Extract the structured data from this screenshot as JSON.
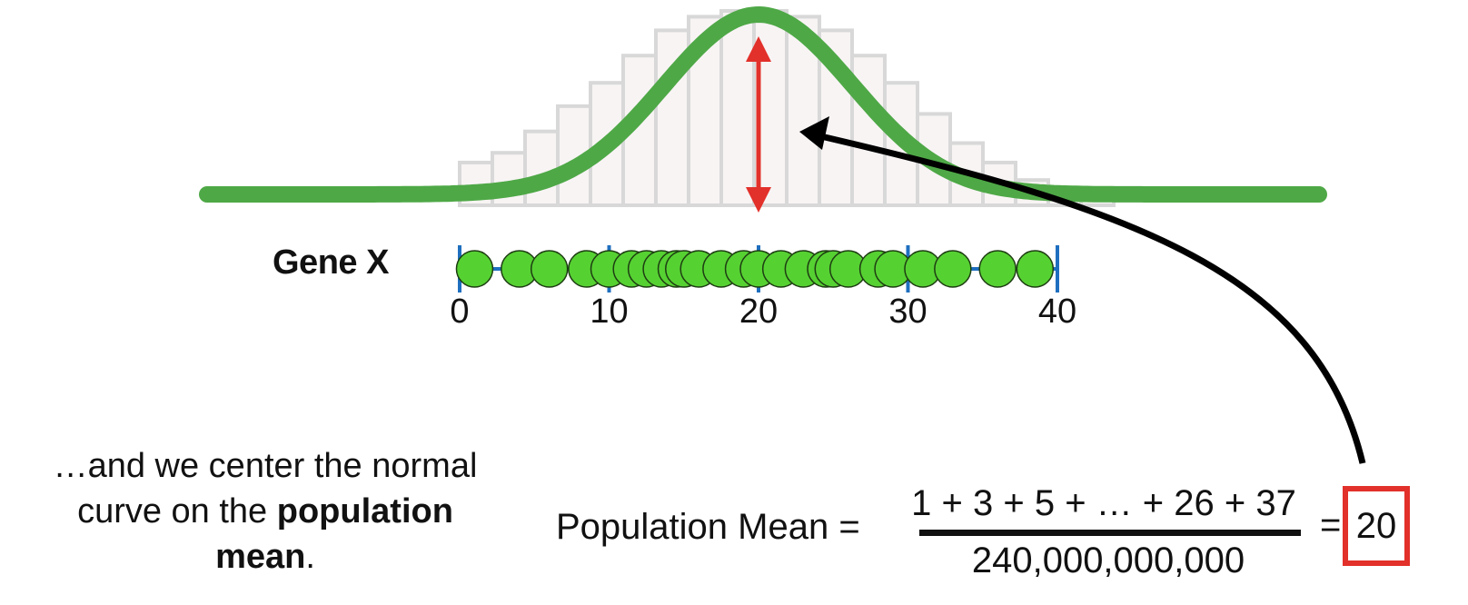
{
  "gene_label": "Gene X",
  "axis": {
    "min": 0,
    "max": 40,
    "ticks": [
      "0",
      "10",
      "20",
      "30",
      "40"
    ]
  },
  "points": [
    1,
    4,
    6,
    8.5,
    10,
    11.5,
    12.5,
    13.5,
    14.5,
    15,
    16,
    17.5,
    19,
    20,
    21.5,
    23,
    24.5,
    25,
    26,
    28,
    29,
    31,
    33,
    36,
    38.5
  ],
  "histogram_heights": [
    0.22,
    0.27,
    0.38,
    0.51,
    0.63,
    0.77,
    0.9,
    0.97,
    1.0,
    1.0,
    0.97,
    0.9,
    0.77,
    0.63,
    0.47,
    0.32,
    0.22,
    0.13,
    0.07,
    0.04
  ],
  "normal_curve": {
    "mean": 20,
    "sd": 6.3
  },
  "caption": {
    "part1": "…and we center the normal curve on the ",
    "bold1": "population",
    "bold2": "mean",
    "end": "."
  },
  "equation": {
    "label": "Population Mean =",
    "numerator": "1 + 3 + 5 + … + 26 + 37",
    "denominator": "240,000,000,000",
    "equals": "=",
    "result": "20"
  },
  "colors": {
    "curve": "#4ea846",
    "dots": "#56d132",
    "axis": "#1f6fbf",
    "arrow_red": "#e2302a",
    "arrow_black": "#000000",
    "hist_stroke": "#d8d8d8",
    "hist_fill": "#f8f4f4"
  }
}
